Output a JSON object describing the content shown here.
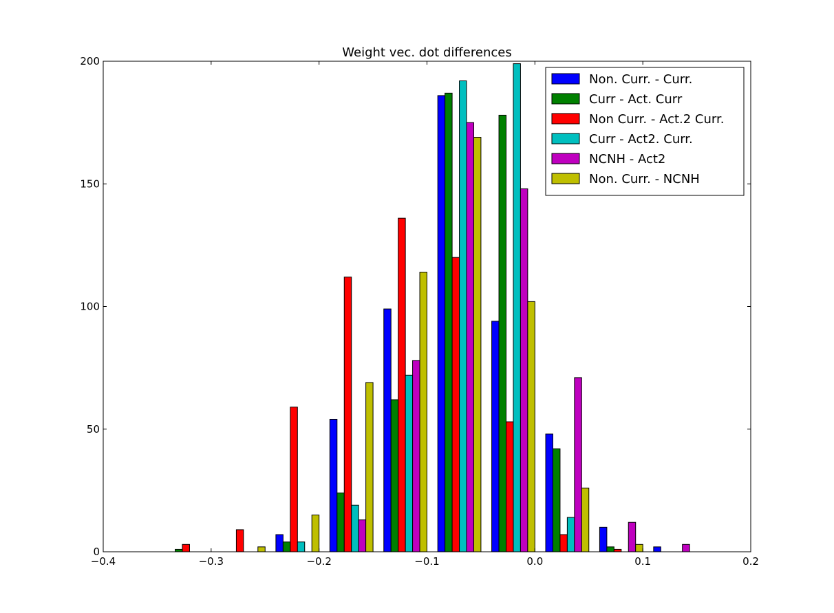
{
  "chart_data": {
    "type": "bar",
    "title": "Weight vec. dot differences",
    "xlabel": "",
    "ylabel": "",
    "xlim": [
      -0.4,
      0.2
    ],
    "ylim": [
      0,
      200
    ],
    "x_ticks": [
      -0.4,
      -0.3,
      -0.2,
      -0.1,
      0.0,
      0.1,
      0.2
    ],
    "x_tick_labels": [
      "−0.4",
      "−0.3",
      "−0.2",
      "−0.1",
      "0.0",
      "0.1",
      "0.2"
    ],
    "y_ticks": [
      0,
      50,
      100,
      150,
      200
    ],
    "y_tick_labels": [
      "0",
      "50",
      "100",
      "150",
      "200"
    ],
    "grid": false,
    "legend_position": "top-right",
    "bin_starts": [
      -0.34,
      -0.29,
      -0.24,
      -0.19,
      -0.14,
      -0.09,
      -0.04,
      0.01,
      0.06,
      0.11
    ],
    "bin_width": 0.05,
    "series": [
      {
        "name": "Non. Curr. - Curr.",
        "color": "#0000ff",
        "values": [
          0,
          0,
          7,
          54,
          99,
          186,
          94,
          48,
          10,
          2
        ]
      },
      {
        "name": "Curr - Act. Curr",
        "color": "#008000",
        "values": [
          1,
          0,
          4,
          24,
          62,
          187,
          178,
          42,
          2,
          0
        ]
      },
      {
        "name": "Non Curr. - Act.2 Curr.",
        "color": "#ff0000",
        "values": [
          3,
          9,
          59,
          112,
          136,
          120,
          53,
          7,
          1,
          0
        ]
      },
      {
        "name": "Curr - Act2. Curr.",
        "color": "#00bfbf",
        "values": [
          0,
          0,
          4,
          19,
          72,
          192,
          199,
          14,
          0,
          0
        ]
      },
      {
        "name": "NCNH - Act2",
        "color": "#bf00bf",
        "values": [
          0,
          0,
          0,
          13,
          78,
          175,
          148,
          71,
          12,
          3
        ]
      },
      {
        "name": "Non. Curr. - NCNH",
        "color": "#bfbf00",
        "values": [
          0,
          2,
          15,
          69,
          114,
          169,
          102,
          26,
          3,
          0
        ]
      }
    ]
  }
}
